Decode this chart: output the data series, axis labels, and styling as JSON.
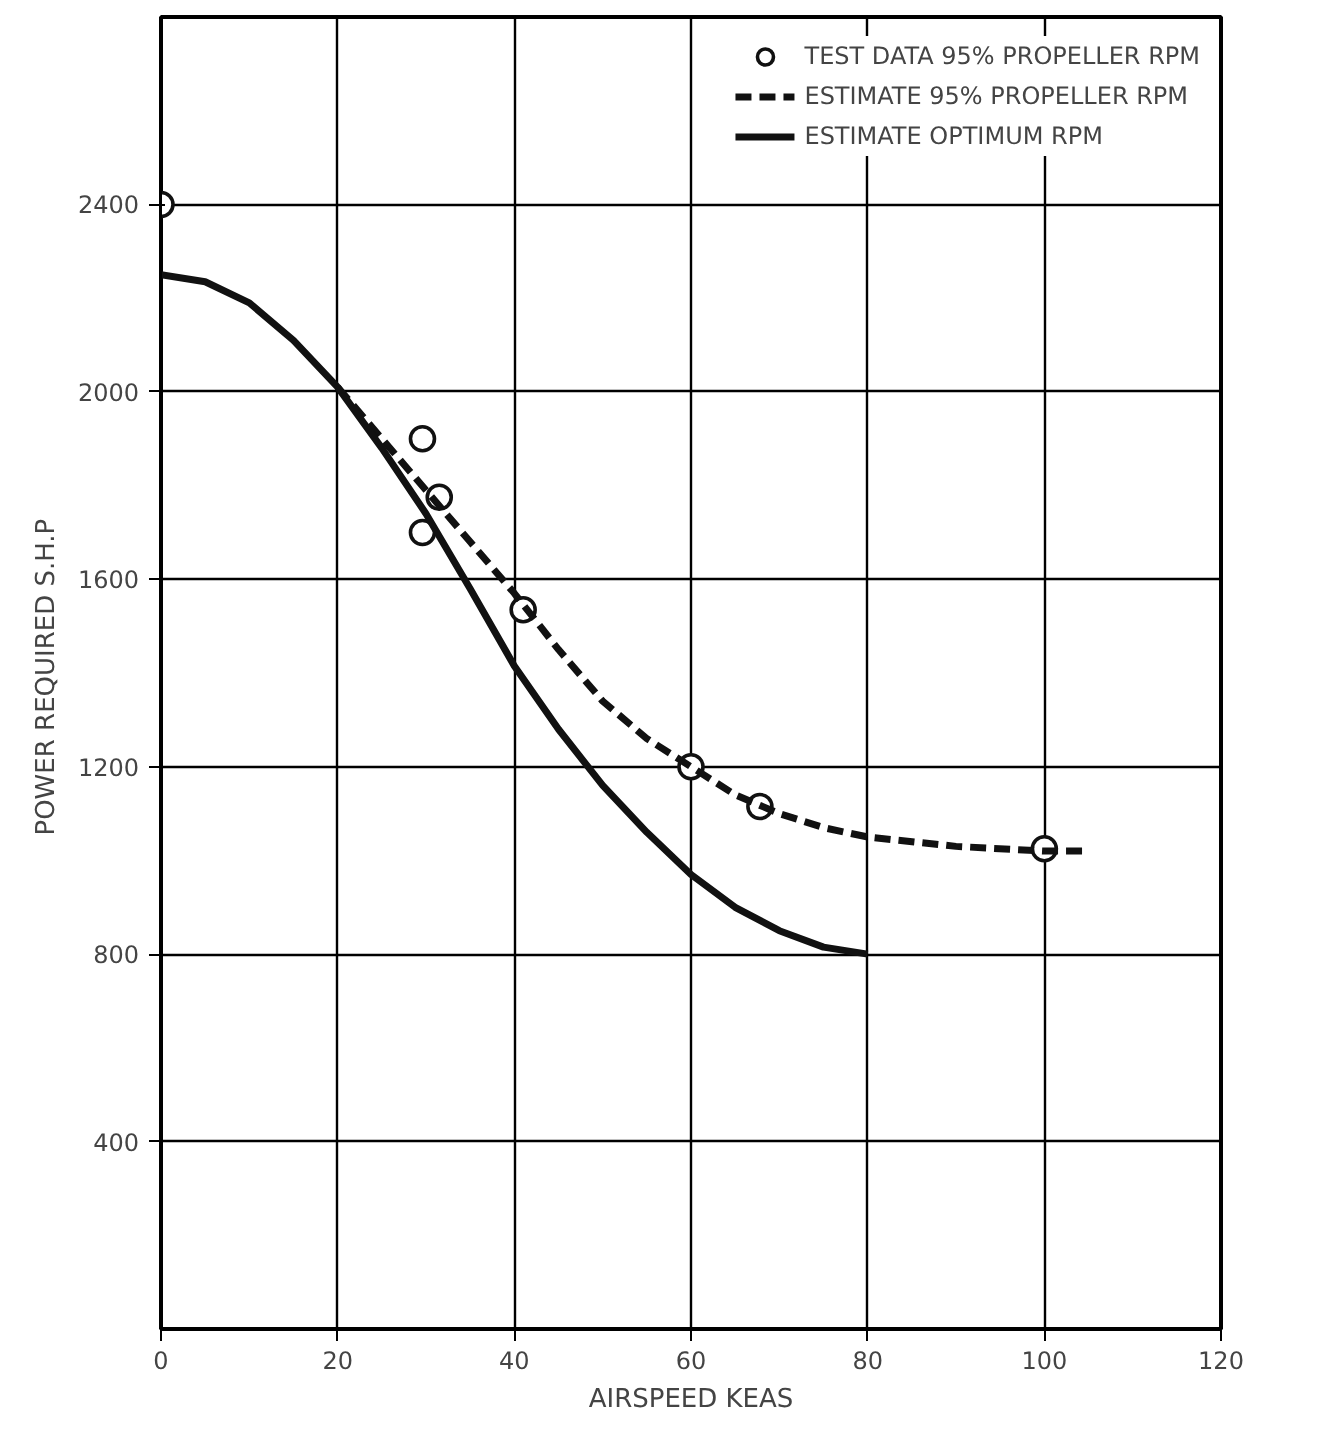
{
  "chart_data": {
    "type": "line",
    "xlabel": "AIRSPEED KEAS",
    "ylabel": "POWER REQUIRED  S.H.P",
    "xlim": [
      0,
      120
    ],
    "xticks": [
      0,
      20,
      40,
      60,
      80,
      100,
      120
    ],
    "ylim": [
      0,
      2800
    ],
    "yticks": [
      400,
      800,
      1200,
      1600,
      2000,
      2400
    ],
    "grid": true,
    "legend": "top right",
    "series": [
      {
        "name": "TEST DATA 95% PROPELLER RPM",
        "type": "scatter",
        "marker": "circle",
        "color": "#111111",
        "x": [
          0,
          29.6,
          29.6,
          31.5,
          41,
          60,
          67.8,
          100
        ],
        "values": [
          2400,
          1900,
          1700,
          1775,
          1535,
          1200,
          1115,
          1025
        ]
      },
      {
        "name": "ESTIMATE 95% PROPELLER RPM",
        "line_style": "dashed",
        "color": "#111111",
        "x": [
          20,
          25,
          30,
          35,
          40,
          45,
          50,
          55,
          60,
          65,
          70,
          75,
          80,
          90,
          100,
          105
        ],
        "values": [
          2010,
          1900,
          1790,
          1680,
          1570,
          1450,
          1340,
          1260,
          1200,
          1140,
          1100,
          1070,
          1050,
          1030,
          1020,
          1020
        ]
      },
      {
        "name": "ESTIMATE OPTIMUM RPM",
        "line_style": "solid",
        "color": "#111111",
        "x": [
          0,
          5,
          10,
          15,
          20,
          25,
          30,
          35,
          40,
          45,
          50,
          55,
          60,
          65,
          70,
          75,
          80
        ],
        "values": [
          2250,
          2235,
          2190,
          2110,
          2010,
          1880,
          1740,
          1580,
          1415,
          1280,
          1160,
          1060,
          970,
          900,
          850,
          815,
          800
        ]
      }
    ]
  }
}
